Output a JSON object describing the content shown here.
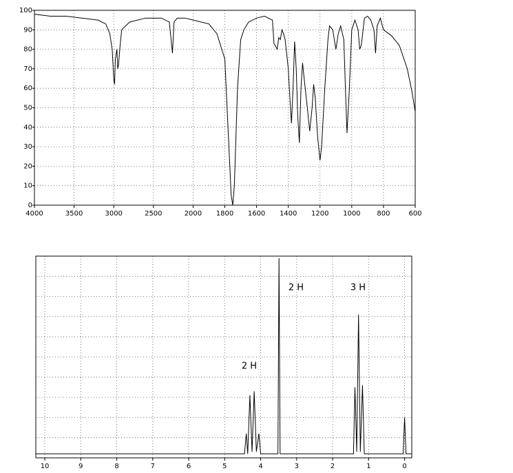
{
  "chart_data": [
    {
      "type": "line",
      "color": "#000000",
      "grid": true,
      "xlim": [
        4000,
        600
      ],
      "ylim": [
        0,
        100
      ],
      "xticks": [
        4000,
        3500,
        3000,
        2500,
        2000,
        1800,
        1600,
        1400,
        1200,
        1000,
        800,
        600
      ],
      "yticks": [
        0,
        10,
        20,
        30,
        40,
        50,
        60,
        70,
        80,
        90,
        100
      ],
      "x": [
        4000,
        3800,
        3600,
        3400,
        3200,
        3100,
        3050,
        3020,
        3000,
        2990,
        2980,
        2960,
        2950,
        2940,
        2920,
        2900,
        2800,
        2600,
        2400,
        2300,
        2260,
        2240,
        2200,
        2100,
        2000,
        1900,
        1850,
        1800,
        1780,
        1760,
        1750,
        1740,
        1720,
        1700,
        1680,
        1650,
        1600,
        1550,
        1500,
        1490,
        1470,
        1460,
        1450,
        1440,
        1430,
        1420,
        1400,
        1390,
        1380,
        1370,
        1360,
        1350,
        1340,
        1330,
        1320,
        1310,
        1300,
        1280,
        1265,
        1250,
        1240,
        1230,
        1215,
        1200,
        1190,
        1170,
        1150,
        1140,
        1120,
        1100,
        1085,
        1070,
        1050,
        1040,
        1030,
        1015,
        1000,
        980,
        960,
        950,
        940,
        920,
        900,
        880,
        860,
        850,
        840,
        820,
        800,
        750,
        700,
        650,
        620,
        600
      ],
      "values": [
        98,
        97,
        97,
        96,
        95,
        93,
        88,
        80,
        65,
        62,
        75,
        80,
        70,
        72,
        82,
        90,
        94,
        96,
        96,
        94,
        78,
        94,
        96,
        96,
        95,
        93,
        88,
        75,
        40,
        5,
        0,
        10,
        60,
        85,
        90,
        94,
        96,
        97,
        95,
        83,
        80,
        86,
        85,
        90,
        88,
        85,
        70,
        55,
        42,
        60,
        84,
        70,
        45,
        32,
        60,
        73,
        65,
        50,
        38,
        50,
        62,
        55,
        35,
        23,
        30,
        60,
        85,
        92,
        90,
        80,
        88,
        92,
        85,
        60,
        37,
        60,
        90,
        95,
        90,
        80,
        82,
        96,
        97,
        95,
        90,
        78,
        92,
        96,
        90,
        87,
        82,
        70,
        58,
        48
      ]
    },
    {
      "type": "line",
      "color": "#000000",
      "grid": true,
      "xlim": [
        10.25,
        -0.2
      ],
      "ylim": [
        0,
        100
      ],
      "xticks": [
        10,
        9,
        8,
        7,
        6,
        5,
        4,
        3,
        2,
        1,
        0
      ],
      "annotations": [
        "2 H",
        "2 H",
        "3 H"
      ],
      "x": [
        10.25,
        4.45,
        4.4,
        4.36,
        4.3,
        4.24,
        4.18,
        4.12,
        4.05,
        4.0,
        3.52,
        3.49,
        3.46,
        1.42,
        1.38,
        1.33,
        1.28,
        1.23,
        1.17,
        1.12,
        0.04,
        0,
        -0.04,
        -0.2
      ],
      "values": [
        2,
        2,
        12,
        2,
        31,
        3,
        33,
        3,
        12,
        2,
        2,
        99,
        2,
        2,
        35,
        3,
        71,
        3,
        36,
        2,
        2,
        20,
        2,
        2
      ]
    }
  ]
}
